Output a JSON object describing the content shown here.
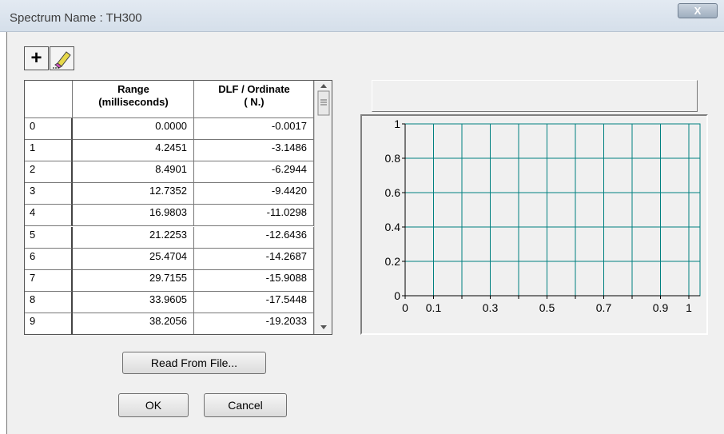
{
  "window": {
    "title": "Spectrum Name : TH300",
    "close": "X"
  },
  "toolbar": {
    "add": "+"
  },
  "table": {
    "headers": [
      [
        "Range",
        "(milliseconds)"
      ],
      [
        "DLF / Ordinate",
        "( N.)"
      ]
    ],
    "rows": [
      [
        "0",
        "0.0000",
        "-0.0017"
      ],
      [
        "1",
        "4.2451",
        "-3.1486"
      ],
      [
        "2",
        "8.4901",
        "-6.2944"
      ],
      [
        "3",
        "12.7352",
        "-9.4420"
      ],
      [
        "4",
        "16.9803",
        "-11.0298"
      ],
      [
        "5",
        "21.2253",
        "-12.6436"
      ],
      [
        "6",
        "25.4704",
        "-14.2687"
      ],
      [
        "7",
        "29.7155",
        "-15.9088"
      ],
      [
        "8",
        "33.9605",
        "-17.5448"
      ],
      [
        "9",
        "38.2056",
        "-19.2033"
      ]
    ]
  },
  "plot": {
    "type": "line",
    "xlim": [
      0,
      1
    ],
    "ylim": [
      0,
      1
    ],
    "xticks": [
      0,
      0.1,
      0.3,
      0.5,
      0.7,
      0.9,
      1
    ],
    "xminor": [
      0.2,
      0.4,
      0.6,
      0.8
    ],
    "yticks": [
      0,
      0.2,
      0.4,
      0.6,
      0.8,
      1
    ],
    "grid": true,
    "grid_color": "#008080"
  },
  "buttons": {
    "read": "Read From File...",
    "ok": "OK",
    "cancel": "Cancel"
  }
}
